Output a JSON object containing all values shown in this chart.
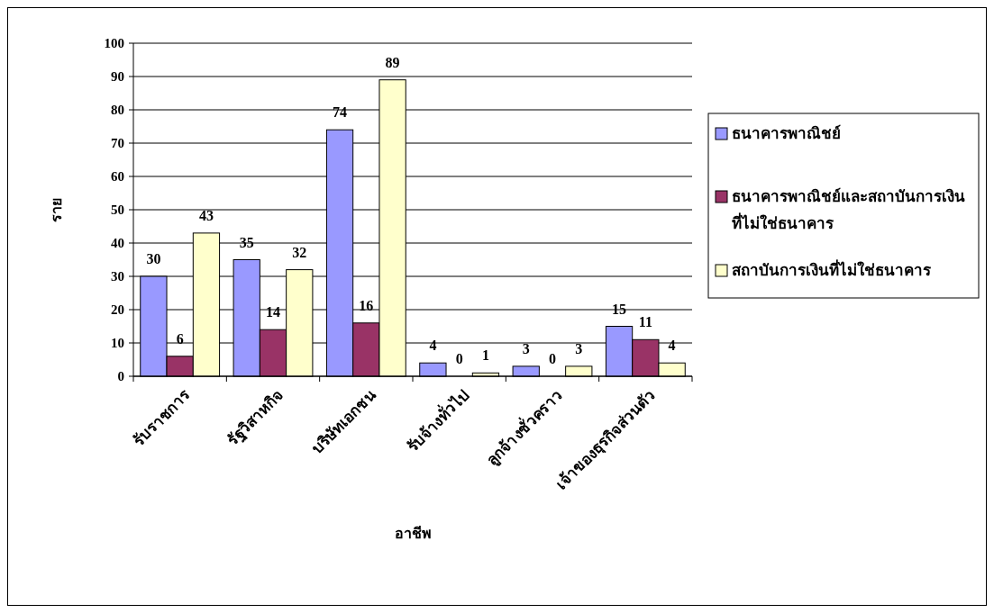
{
  "chart_data": {
    "type": "bar",
    "xlabel": "อาชีพ",
    "ylabel": "ราย",
    "categories": [
      "รับราชการ",
      "รัฐวิสาหกิจ",
      "บริษัทเอกชน",
      "รับจ้างทั่วไป",
      "ลูกจ้างชั่วคราว",
      "เจ้าของธุรกิจส่วนตัว"
    ],
    "series": [
      {
        "name": "ธนาคารพาณิชย์",
        "color": "#9999ff",
        "values": [
          30,
          35,
          74,
          4,
          3,
          15
        ]
      },
      {
        "name": "ธนาคารพาณิชย์และสถาบันการเงินที่ไม่ใช่ธนาคาร",
        "color": "#993366",
        "values": [
          6,
          14,
          16,
          0,
          0,
          11
        ]
      },
      {
        "name": "สถาบันการเงินที่ไม่ใช่ธนาคาร",
        "color": "#ffffcc",
        "values": [
          43,
          32,
          89,
          1,
          3,
          4
        ]
      }
    ],
    "ylim": [
      0,
      100
    ],
    "yticks": [
      0,
      10,
      20,
      30,
      40,
      50,
      60,
      70,
      80,
      90,
      100
    ],
    "grid": "y",
    "legend": "right",
    "data_labels": true
  }
}
